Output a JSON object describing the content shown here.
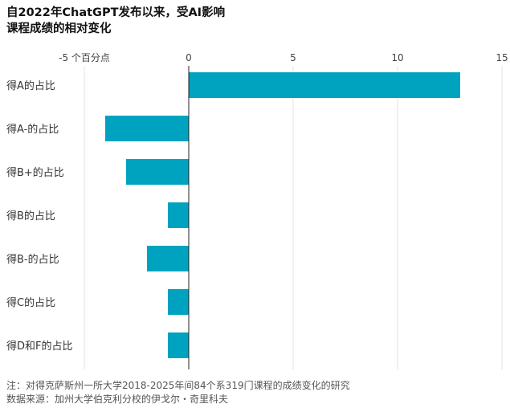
{
  "chart_data": {
    "type": "bar",
    "orientation": "horizontal",
    "title_lines": [
      "自2022年ChatGPT发布以来，受AI影响",
      "课程成绩的相对变化"
    ],
    "categories": [
      "得A的占比",
      "得A-的占比",
      "得B+的占比",
      "得B的占比",
      "得B-的占比",
      "得C的占比",
      "得D和F的占比"
    ],
    "values": [
      13,
      -4,
      -3,
      -1,
      -2,
      -1,
      -1
    ],
    "xlim": [
      -5,
      15
    ],
    "xticks": [
      -5,
      0,
      5,
      10,
      15
    ],
    "xtick_labels": [
      "-5 个百分点",
      "0",
      "5",
      "10",
      "15"
    ],
    "grid": true,
    "bar_color": "#00a3bf"
  },
  "footer": {
    "note": "注：对得克萨斯州一所大学2018-2025年间84个系319门课程的成绩变化的研究",
    "source": "数据来源：加州大学伯克利分校的伊戈尔・奇里科夫"
  }
}
